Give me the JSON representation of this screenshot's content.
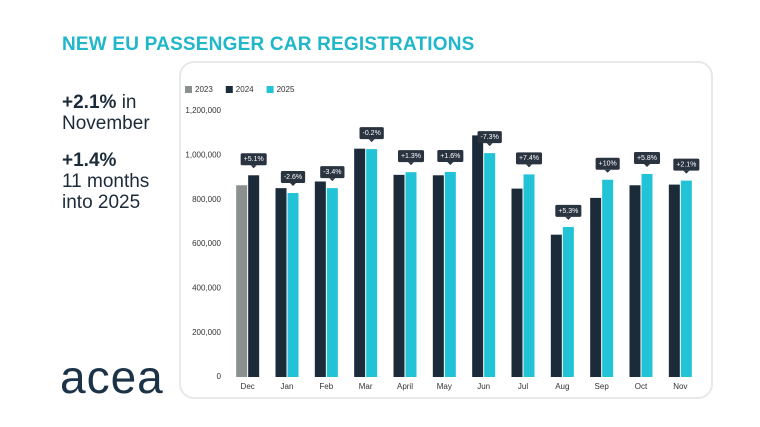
{
  "title": "NEW EU PASSENGER CAR REGISTRATIONS",
  "highlights": [
    {
      "value": "+2.1%",
      "text": "in November"
    },
    {
      "value": "+1.4%",
      "text": "11 months into 2025"
    }
  ],
  "logo": "acea",
  "chart_data": {
    "type": "bar",
    "categories": [
      "Dec",
      "Jan",
      "Feb",
      "Mar",
      "April",
      "May",
      "Jun",
      "Jul",
      "Aug",
      "Sep",
      "Oct",
      "Nov"
    ],
    "series": [
      {
        "name": "2023",
        "color": "#8a8f8f",
        "values": [
          865000,
          null,
          null,
          null,
          null,
          null,
          null,
          null,
          null,
          null,
          null,
          null
        ]
      },
      {
        "name": "2024",
        "color": "#1c2b3a",
        "values": [
          910000,
          852000,
          882000,
          1030000,
          912000,
          910000,
          1090000,
          850000,
          642000,
          808000,
          865000,
          868000
        ]
      },
      {
        "name": "2025",
        "color": "#22c3d6",
        "values": [
          null,
          830000,
          852000,
          1028000,
          924000,
          925000,
          1010000,
          914000,
          677000,
          890000,
          916000,
          886000
        ]
      }
    ],
    "change_labels": [
      "+5.1%",
      "-2.6%",
      "-3.4%",
      "-0.2%",
      "+1.3%",
      "+1.6%",
      "-7.3%",
      "+7.4%",
      "+5.3%",
      "+10%",
      "+5.8%",
      "+2.1%"
    ],
    "ylim": [
      0,
      1200000
    ],
    "yticks": [
      0,
      {
        "value": 200000,
        "label": "200,000"
      },
      {
        "value": 400000,
        "label": "400,000"
      },
      {
        "value": 600000,
        "label": "600,000"
      },
      {
        "value": 800000,
        "label": "800,000"
      },
      {
        "value": 1000000,
        "label": "1,000,000"
      },
      {
        "value": 1200000,
        "label": "1,200,000"
      }
    ],
    "grid": false,
    "legend": "top-left"
  }
}
